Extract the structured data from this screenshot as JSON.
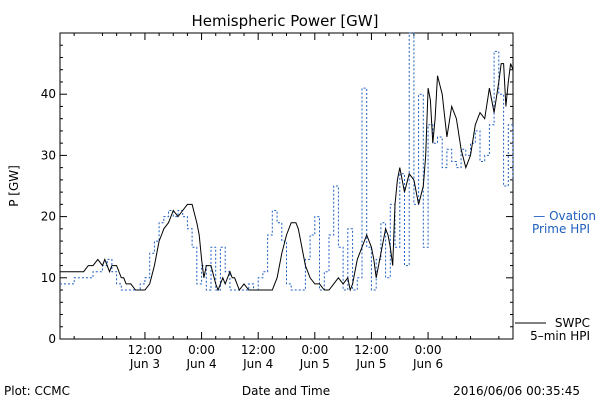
{
  "chart_data": {
    "type": "line",
    "title": "Hemispheric Power [GW]",
    "ylabel": "P [GW]",
    "xlabel": "Date and Time",
    "ylim": [
      0,
      50
    ],
    "xlim": [
      0,
      96
    ],
    "yticks": [
      0,
      10,
      20,
      30,
      40
    ],
    "xticks": [
      {
        "x": 18,
        "line1": "12:00",
        "line2": "Jun 3"
      },
      {
        "x": 30,
        "line1": "0:00",
        "line2": "Jun 4"
      },
      {
        "x": 42,
        "line1": "12:00",
        "line2": "Jun 4"
      },
      {
        "x": 54,
        "line1": "0:00",
        "line2": "Jun 5"
      },
      {
        "x": 66,
        "line1": "12:00",
        "line2": "Jun 5"
      },
      {
        "x": 78,
        "line1": "0:00",
        "line2": "Jun 6"
      }
    ],
    "series": [
      {
        "name": "SWPC 5-min HPI",
        "legend_line1": "SWPC",
        "legend_line2": "5–min HPI",
        "color": "#000000",
        "dash": "",
        "x": [
          0,
          1,
          2,
          2.5,
          5,
          6,
          7,
          8,
          9,
          9.5,
          10,
          10.5,
          11,
          12,
          13,
          13.5,
          14,
          15,
          16,
          17,
          18,
          19,
          20,
          21,
          21.5,
          22,
          23,
          24,
          25,
          26,
          27,
          28,
          29,
          29.5,
          30,
          30.5,
          31,
          32,
          33,
          33.5,
          34,
          34.5,
          35,
          36,
          36.5,
          37,
          37.5,
          38,
          39,
          40,
          41,
          42,
          42.5,
          43,
          44,
          45,
          46,
          47,
          48,
          49,
          50,
          50.5,
          51,
          52,
          53,
          54,
          55,
          56,
          57,
          58,
          59,
          60,
          61,
          61.5,
          62,
          63,
          64,
          65,
          66,
          66.5,
          67,
          68,
          69,
          69.5,
          70,
          70.5,
          71,
          71.5,
          72,
          73,
          74,
          75,
          76,
          77,
          77.5,
          78,
          78.5,
          79,
          79.5,
          80
        ],
        "y": [
          11,
          11,
          11,
          11,
          11,
          12,
          12,
          13,
          12,
          13,
          12,
          11,
          12,
          12,
          10,
          10,
          9,
          9,
          8,
          8,
          8,
          9,
          12,
          16,
          17,
          18,
          19,
          21,
          20,
          21,
          22,
          22,
          19,
          17,
          13,
          10,
          12,
          12,
          9,
          8,
          9,
          10,
          9,
          11,
          10,
          10,
          9,
          8,
          9,
          8,
          8,
          8,
          8,
          8,
          8,
          8,
          10,
          14,
          17,
          19,
          19,
          18,
          16,
          12,
          10,
          9,
          9,
          8,
          8,
          9,
          10,
          9,
          10,
          8,
          9,
          13,
          15,
          17,
          15,
          13,
          10,
          14,
          18,
          17,
          15,
          12,
          22,
          26,
          28,
          24,
          27,
          26,
          22,
          25,
          30,
          41,
          39,
          32,
          36,
          43
        ],
        "_x2": [
          80,
          81,
          82,
          83,
          84,
          85,
          86,
          87,
          88,
          89,
          90,
          91,
          92,
          93,
          93.5,
          94,
          94.5,
          95,
          95.5,
          96
        ],
        "_y2": [
          43,
          40,
          33,
          38,
          36,
          31,
          28,
          30,
          35,
          37,
          36,
          41,
          37,
          42,
          45,
          45,
          38,
          42,
          45,
          44
        ]
      },
      {
        "name": "Ovation Prime HPI",
        "legend_line1": "— Ovation",
        "legend_line2": "Prime HPI",
        "color": "#1f5fbf",
        "dash": "2,2",
        "x": [
          0,
          2,
          3,
          4,
          5,
          6,
          7,
          8,
          9,
          10,
          11,
          12,
          13,
          14,
          15,
          16,
          17,
          18,
          19,
          20,
          21,
          22,
          23,
          24,
          25,
          26,
          27,
          28,
          29,
          30,
          31,
          32,
          33,
          34,
          35,
          36,
          37,
          38,
          39,
          40,
          41,
          42,
          43,
          44,
          45,
          46,
          47,
          48,
          49,
          50,
          51,
          52,
          53,
          54,
          55,
          56,
          57,
          58,
          59,
          60,
          61,
          62,
          63,
          64,
          65,
          66,
          67,
          68,
          69,
          70,
          71,
          72,
          73,
          74,
          75,
          76,
          77,
          78,
          79,
          80,
          81,
          82,
          83,
          84,
          85,
          86,
          87,
          88,
          89,
          90,
          91,
          92,
          93,
          94,
          95,
          96
        ],
        "y": [
          9,
          9,
          10,
          10,
          10,
          10,
          11,
          11,
          12,
          13,
          11,
          9,
          8,
          8,
          8,
          8,
          9,
          10,
          14,
          16,
          19,
          20,
          21,
          20,
          21,
          20,
          18,
          15,
          9,
          12,
          8,
          15,
          8,
          15,
          11,
          8,
          8,
          8,
          8,
          9,
          8,
          10,
          11,
          17,
          21,
          19,
          16,
          9,
          8,
          8,
          8,
          13,
          17,
          20,
          8,
          11,
          17,
          25,
          15,
          8,
          18,
          8,
          10,
          41,
          15,
          8,
          13,
          19,
          10,
          22,
          15,
          27,
          12,
          50,
          22,
          40,
          15,
          35,
          32,
          33,
          28,
          31,
          29,
          28,
          31,
          30,
          32,
          34,
          29,
          30,
          35,
          47,
          40,
          25,
          35,
          26
        ]
      }
    ],
    "footer": {
      "left": "Plot: CCMC",
      "right": "2016/06/06 00:35:45"
    }
  }
}
